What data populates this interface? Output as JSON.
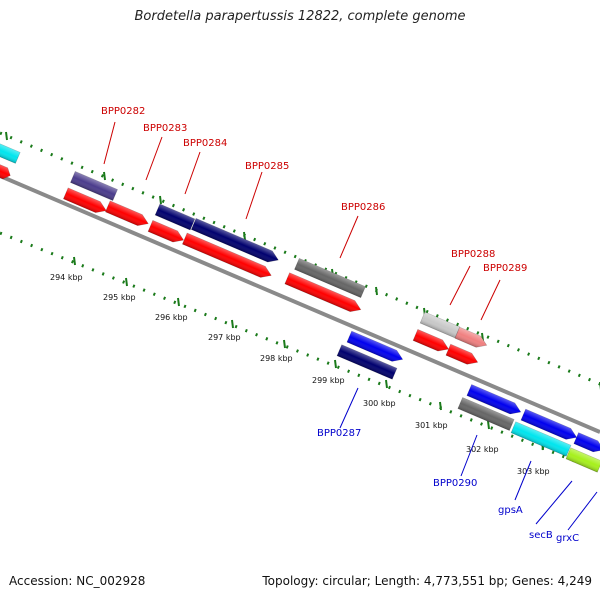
{
  "header": {
    "title": "Bordetella parapertussis 12822, complete genome"
  },
  "footer": {
    "accession": "Accession: NC_002928",
    "topology": "Topology: circular; Length: 4,773,551 bp; Genes: 4,249"
  },
  "colors": {
    "backbone": "#8a8a8a",
    "ruler": "#1a7a1a",
    "forward_label": "#cc0000",
    "reverse_label": "#0000cc",
    "cds": "#ff0000",
    "blue": "#0000ee",
    "navy": "#00006e",
    "gray": "#666666",
    "cyan": "#00e5ee",
    "purple": "#4b3c8c",
    "lightgray": "#c8c8c8",
    "pink": "#f08080",
    "lime": "#a6f01c"
  },
  "scale": {
    "ticks": [
      "294 kbp",
      "295 kbp",
      "296 kbp",
      "297 kbp",
      "298 kbp",
      "299 kbp",
      "300 kbp",
      "301 kbp",
      "302 kbp",
      "303 kbp"
    ]
  },
  "genes": {
    "forward": [
      "BPP0282",
      "BPP0283",
      "BPP0284",
      "BPP0285",
      "BPP0286",
      "BPP0288",
      "BPP0289"
    ],
    "reverse": [
      "BPP0287",
      "BPP0290",
      "gpsA",
      "secB",
      "grxC"
    ]
  }
}
